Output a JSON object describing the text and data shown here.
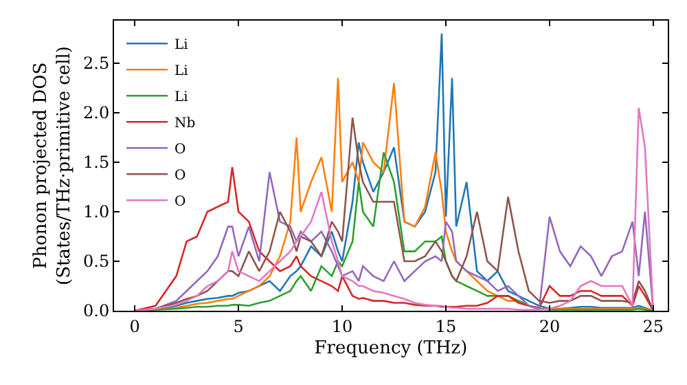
{
  "chart_data": {
    "type": "line",
    "xlabel": "Frequency (THz)",
    "ylabel": "Phonon projected DOS\n(States/THz·primitive cell)",
    "x": [
      0,
      1,
      2,
      2.5,
      3,
      3.5,
      4,
      4.5,
      4.7,
      5,
      5.5,
      6,
      6.5,
      7,
      7.5,
      7.8,
      8,
      8.5,
      9,
      9.5,
      9.8,
      10,
      10.5,
      10.8,
      11,
      11.5,
      12,
      12.5,
      13,
      13.5,
      14,
      14.5,
      14.8,
      15,
      15.3,
      15.5,
      16,
      16.5,
      17,
      17.5,
      18,
      18.5,
      19,
      19.5,
      20,
      20.5,
      21,
      21.5,
      22,
      22.5,
      23,
      23.5,
      24,
      24.3,
      24.6,
      25
    ],
    "xlim": [
      -1,
      25.7
    ],
    "ylim": [
      0,
      2.93
    ],
    "xticks": [
      0,
      5,
      10,
      15,
      20,
      25
    ],
    "yticks": [
      {
        "value": 0,
        "label": "0.0"
      },
      {
        "value": 0.5,
        "label": "0.5"
      },
      {
        "value": 1,
        "label": "1.0"
      },
      {
        "value": 1.5,
        "label": "1.5"
      },
      {
        "value": 2,
        "label": "2.0"
      },
      {
        "value": 2.5,
        "label": "2.5"
      }
    ],
    "legend": "top left",
    "marker": "none",
    "line_style": "solid",
    "series": [
      {
        "name": "Li",
        "color": "#1f77b4",
        "values": [
          0,
          0.01,
          0.05,
          0.08,
          0.1,
          0.12,
          0.13,
          0.15,
          0.15,
          0.18,
          0.2,
          0.25,
          0.3,
          0.2,
          0.35,
          0.4,
          0.45,
          0.65,
          0.55,
          0.8,
          0.6,
          0.5,
          1.1,
          1.7,
          1.5,
          1.2,
          1.4,
          1.65,
          0.9,
          0.85,
          1.0,
          1.4,
          2.8,
          0.95,
          2.35,
          0.85,
          1.3,
          0.4,
          0.3,
          0.4,
          0.2,
          0.15,
          0.1,
          0.05,
          0.02,
          0.02,
          0.03,
          0.04,
          0.04,
          0.03,
          0.03,
          0.03,
          0.03,
          0.05,
          0.03,
          0
        ]
      },
      {
        "name": "Li",
        "color": "#ff7f0e",
        "values": [
          0,
          0.01,
          0.03,
          0.05,
          0.07,
          0.08,
          0.1,
          0.12,
          0.12,
          0.15,
          0.2,
          0.25,
          0.35,
          0.55,
          0.9,
          1.75,
          1.0,
          1.3,
          1.55,
          1.0,
          2.35,
          1.3,
          1.5,
          1.3,
          1.7,
          1.5,
          1.4,
          2.3,
          0.9,
          0.85,
          1.05,
          1.6,
          1.2,
          0.8,
          0.6,
          0.5,
          0.4,
          0.3,
          0.2,
          0.15,
          0.1,
          0.1,
          0.05,
          0.02,
          0.02,
          0.02,
          0.02,
          0.02,
          0.02,
          0.02,
          0.02,
          0.02,
          0.02,
          0.03,
          0.02,
          0
        ]
      },
      {
        "name": "Li",
        "color": "#2ca02c",
        "values": [
          0,
          0.01,
          0.02,
          0.03,
          0.04,
          0.04,
          0.05,
          0.05,
          0.06,
          0.06,
          0.05,
          0.08,
          0.1,
          0.15,
          0.2,
          0.3,
          0.35,
          0.2,
          0.45,
          0.35,
          0.5,
          0.45,
          0.7,
          1.3,
          1.0,
          0.85,
          1.6,
          1.3,
          0.6,
          0.6,
          0.7,
          0.7,
          0.75,
          0.5,
          0.35,
          0.3,
          0.25,
          0.2,
          0.15,
          0.15,
          0.15,
          0.1,
          0.05,
          0.02,
          0.01,
          0.01,
          0.01,
          0.01,
          0.01,
          0.01,
          0.01,
          0.01,
          0.01,
          0.02,
          0.01,
          0
        ]
      },
      {
        "name": "Nb",
        "color": "#d62728",
        "values": [
          0,
          0.05,
          0.35,
          0.7,
          0.75,
          1.0,
          1.05,
          1.1,
          1.45,
          1.0,
          0.9,
          0.6,
          0.5,
          0.4,
          0.45,
          0.55,
          0.45,
          0.35,
          0.3,
          0.25,
          0.2,
          0.35,
          0.15,
          0.12,
          0.13,
          0.1,
          0.1,
          0.08,
          0.08,
          0.06,
          0.05,
          0.05,
          0.04,
          0.04,
          0.04,
          0.04,
          0.05,
          0.05,
          0.08,
          0.15,
          0.15,
          0.08,
          0.05,
          0.03,
          0.25,
          0.15,
          0.15,
          0.2,
          0.2,
          0.15,
          0.15,
          0.15,
          0.05,
          0.25,
          0.15,
          0
        ]
      },
      {
        "name": "O",
        "color": "#9467bd",
        "values": [
          0,
          0.02,
          0.1,
          0.2,
          0.3,
          0.4,
          0.55,
          0.85,
          0.85,
          0.55,
          0.85,
          0.5,
          1.4,
          0.9,
          0.85,
          0.7,
          0.8,
          0.7,
          0.8,
          0.6,
          0.45,
          0.35,
          0.4,
          0.3,
          0.45,
          0.35,
          0.3,
          0.5,
          0.3,
          0.4,
          0.5,
          0.55,
          0.5,
          0.9,
          0.8,
          0.5,
          0.4,
          0.35,
          0.3,
          0.2,
          0.25,
          0.15,
          0.05,
          0.02,
          0.95,
          0.6,
          0.45,
          0.65,
          0.55,
          0.35,
          0.55,
          0.6,
          0.9,
          0.35,
          1.0,
          0
        ]
      },
      {
        "name": "O",
        "color": "#8c564b",
        "values": [
          0,
          0.02,
          0.08,
          0.12,
          0.15,
          0.2,
          0.3,
          0.4,
          0.4,
          0.35,
          0.6,
          0.4,
          0.6,
          1.0,
          0.8,
          0.6,
          0.75,
          0.7,
          0.55,
          0.9,
          0.8,
          0.7,
          1.95,
          1.5,
          1.3,
          1.1,
          1.1,
          1.1,
          0.5,
          0.5,
          0.55,
          0.7,
          0.6,
          0.5,
          0.35,
          0.3,
          0.55,
          1.0,
          0.5,
          0.4,
          1.15,
          0.6,
          0.2,
          0.1,
          0.08,
          0.1,
          0.1,
          0.15,
          0.15,
          0.1,
          0.1,
          0.1,
          0.08,
          0.3,
          0.2,
          0
        ]
      },
      {
        "name": "O",
        "color": "#e377c2",
        "values": [
          0,
          0.02,
          0.06,
          0.1,
          0.15,
          0.25,
          0.3,
          0.4,
          0.6,
          0.4,
          0.35,
          0.3,
          0.4,
          0.5,
          0.6,
          0.7,
          0.75,
          0.9,
          1.2,
          0.7,
          0.5,
          0.35,
          0.3,
          0.25,
          0.25,
          0.2,
          0.18,
          0.15,
          0.12,
          0.08,
          0.06,
          0.05,
          0.05,
          0.04,
          0.03,
          0.03,
          0.02,
          0.02,
          0.02,
          0.02,
          0.02,
          0.01,
          0.01,
          0.01,
          0.02,
          0.05,
          0.1,
          0.25,
          0.3,
          0.25,
          0.25,
          0.25,
          0.05,
          2.05,
          1.65,
          0
        ]
      }
    ]
  }
}
